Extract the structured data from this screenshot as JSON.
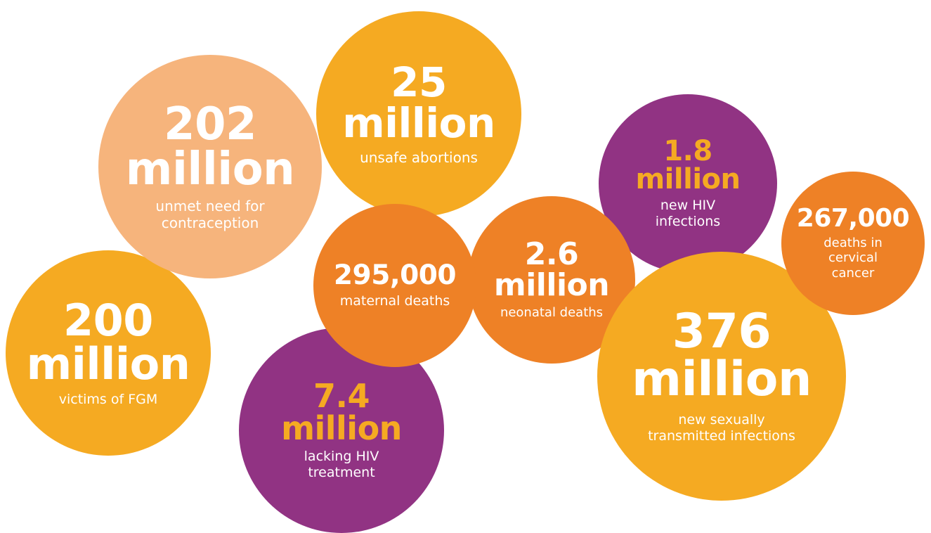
{
  "colors": {
    "yellow": "#f5aa22",
    "peach": "#f6b47c",
    "orange": "#ee8126",
    "purple": "#913383",
    "white": "#ffffff"
  },
  "stats": {
    "contraception": {
      "value_line1": "202",
      "value_line2": "million",
      "label_line1": "unmet need for",
      "label_line2": "contraception",
      "color": "#f6b47c"
    },
    "abortions": {
      "value_line1": "25",
      "value_line2": "million",
      "label_line1": "unsafe abortions",
      "color": "#f5aa22"
    },
    "fgm": {
      "value_line1": "200",
      "value_line2": "million",
      "label_line1": "victims of FGM",
      "color": "#f5aa22"
    },
    "maternal": {
      "value_line1": "295,000",
      "label_line1": "maternal deaths",
      "color": "#ee8126"
    },
    "neonatal": {
      "value_line1": "2.6",
      "value_line2": "million",
      "label_line1": "neonatal deaths",
      "color": "#ee8126"
    },
    "hiv_treatment": {
      "value_line1": "7.4",
      "value_line2": "million",
      "label_line1": "lacking HIV",
      "label_line2": "treatment",
      "color": "#913383"
    },
    "hiv_new": {
      "value_line1": "1.8",
      "value_line2": "million",
      "label_line1": "new HIV",
      "label_line2": "infections",
      "color": "#913383"
    },
    "sti": {
      "value_line1": "376",
      "value_line2": "million",
      "label_line1": "new sexually",
      "label_line2": "transmitted infections",
      "color": "#f5aa22"
    },
    "cervical": {
      "value_line1": "267,000",
      "label_line1": "deaths in",
      "label_line2": "cervical",
      "label_line3": "cancer",
      "color": "#ee8126"
    }
  }
}
